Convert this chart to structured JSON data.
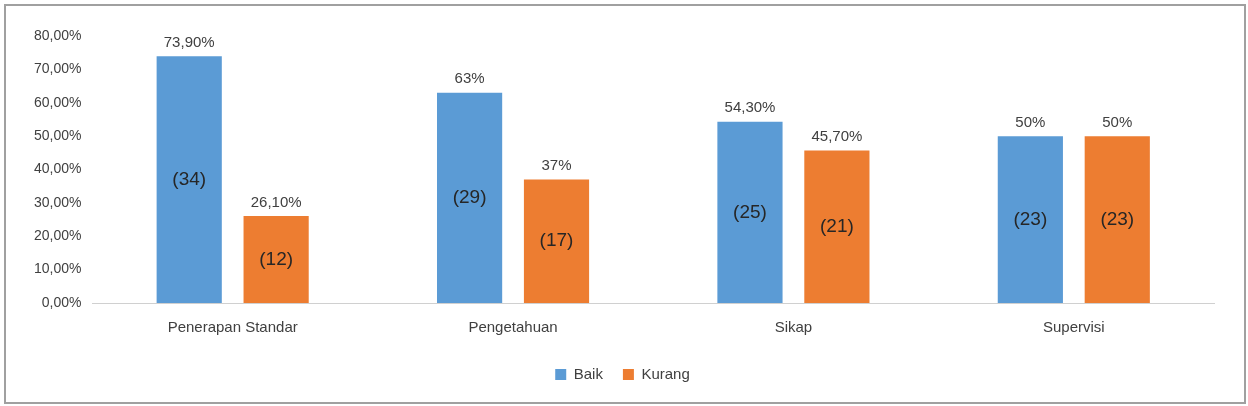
{
  "chart_data": {
    "type": "bar",
    "categories": [
      "Penerapan Standar",
      "Pengetahuan",
      "Sikap",
      "Supervisi"
    ],
    "series": [
      {
        "name": "Baik",
        "color": "#5b9bd5",
        "values": [
          73.9,
          63,
          54.3,
          50
        ],
        "value_labels": [
          "73,90%",
          "63%",
          "54,30%",
          "50%"
        ]
      },
      {
        "name": "Kurang",
        "color": "#ed7d31",
        "values": [
          26.1,
          37,
          45.7,
          50
        ],
        "value_labels": [
          "26,10%",
          "37%",
          "45,70%",
          "50%"
        ]
      }
    ],
    "ylim": [
      0,
      80
    ],
    "yticks": [
      {
        "value": 0,
        "label": "0,00%"
      },
      {
        "value": 10,
        "label": "10,00%"
      },
      {
        "value": 20,
        "label": "20,00%"
      },
      {
        "value": 30,
        "label": "30,00%"
      },
      {
        "value": 40,
        "label": "40,00%"
      },
      {
        "value": 50,
        "label": "50,00%"
      },
      {
        "value": 60,
        "label": "60,00%"
      },
      {
        "value": 70,
        "label": "70,00%"
      },
      {
        "value": 80,
        "label": "80,00%"
      }
    ],
    "annotations": [
      "(34)",
      "(12)",
      "(29)",
      "(17)",
      "(25)",
      "(21)",
      "(23)",
      "(23)"
    ],
    "grid": false,
    "legend": "bottom"
  }
}
